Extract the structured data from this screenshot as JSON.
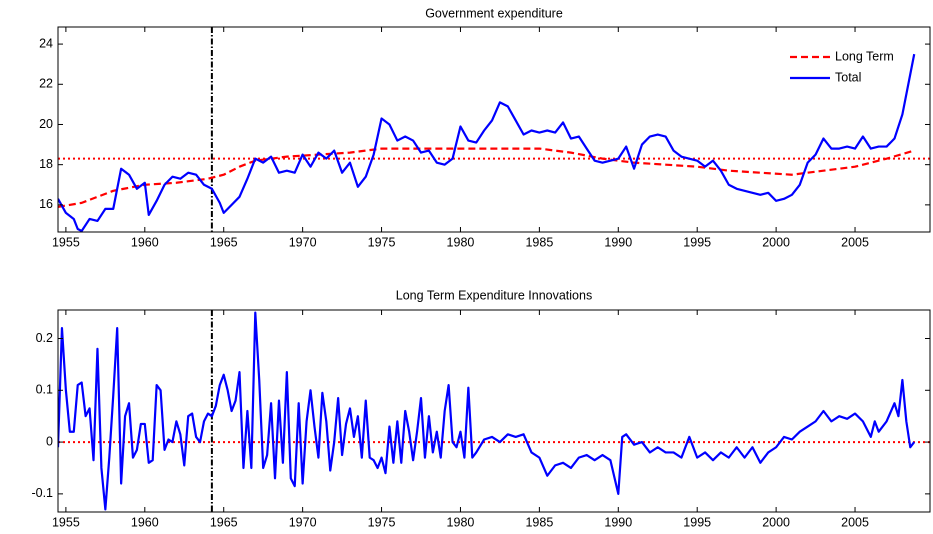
{
  "chart_data": [
    {
      "type": "line",
      "title": "Government expenditure",
      "xlim": [
        1954.5,
        2009.75
      ],
      "xticks": [
        1955,
        1960,
        1965,
        1970,
        1975,
        1980,
        1985,
        1990,
        1995,
        2000,
        2005
      ],
      "ylim": [
        14.65,
        24.85
      ],
      "yticks": [
        16,
        18,
        20,
        22,
        24
      ],
      "hline": 18.3,
      "hline_color": "#ff0000",
      "vline": 1964.25,
      "vline_color": "#000000",
      "legend": "upper right",
      "series": [
        {
          "name": "Long Term",
          "color": "#ff0000",
          "dash": true,
          "x": [
            1954.5,
            1956,
            1958,
            1960,
            1962,
            1964,
            1965,
            1966,
            1967,
            1969,
            1971,
            1973,
            1975,
            1977,
            1979,
            1981,
            1983,
            1985,
            1987,
            1989,
            1991,
            1993,
            1995,
            1997,
            1999,
            2001,
            2003,
            2005,
            2007,
            2008.75
          ],
          "values": [
            15.9,
            16.1,
            16.7,
            17.0,
            17.1,
            17.3,
            17.5,
            17.9,
            18.2,
            18.4,
            18.5,
            18.6,
            18.8,
            18.8,
            18.8,
            18.8,
            18.8,
            18.8,
            18.6,
            18.3,
            18.1,
            18.0,
            17.9,
            17.7,
            17.6,
            17.5,
            17.7,
            17.9,
            18.3,
            18.7
          ]
        },
        {
          "name": "Total",
          "color": "#0000ff",
          "dash": false,
          "x": [
            1954.5,
            1955,
            1955.5,
            1955.75,
            1956,
            1956.5,
            1957,
            1957.5,
            1958,
            1958.5,
            1959,
            1959.5,
            1960,
            1960.25,
            1960.75,
            1961.25,
            1961.75,
            1962.25,
            1962.75,
            1963.25,
            1963.75,
            1964.25,
            1964.75,
            1965,
            1965.5,
            1966,
            1966.5,
            1967,
            1967.5,
            1968,
            1968.5,
            1969,
            1969.5,
            1970,
            1970.5,
            1971,
            1971.5,
            1972,
            1972.5,
            1973,
            1973.5,
            1974,
            1974.5,
            1975,
            1975.5,
            1976,
            1976.5,
            1977,
            1977.5,
            1978,
            1978.5,
            1979,
            1979.5,
            1980,
            1980.5,
            1981,
            1981.5,
            1982,
            1982.5,
            1983,
            1983.5,
            1984,
            1984.5,
            1985,
            1985.5,
            1986,
            1986.5,
            1987,
            1987.5,
            1988,
            1988.5,
            1989,
            1989.5,
            1990,
            1990.5,
            1991,
            1991.5,
            1992,
            1992.5,
            1993,
            1993.5,
            1994,
            1994.5,
            1995,
            1995.5,
            1996,
            1996.5,
            1997,
            1997.5,
            1998,
            1998.5,
            1999,
            1999.5,
            2000,
            2000.5,
            2001,
            2001.5,
            2002,
            2002.5,
            2003,
            2003.5,
            2004,
            2004.5,
            2005,
            2005.5,
            2006,
            2006.5,
            2007,
            2007.5,
            2008,
            2008.5,
            2008.75
          ],
          "values": [
            16.3,
            15.6,
            15.3,
            14.8,
            14.7,
            15.3,
            15.2,
            15.8,
            15.8,
            17.8,
            17.5,
            16.8,
            17.1,
            15.5,
            16.2,
            17.0,
            17.4,
            17.3,
            17.6,
            17.5,
            17.0,
            16.8,
            16.1,
            15.6,
            16.0,
            16.4,
            17.3,
            18.3,
            18.1,
            18.4,
            17.6,
            17.7,
            17.6,
            18.5,
            17.9,
            18.6,
            18.3,
            18.7,
            17.6,
            18.1,
            16.9,
            17.4,
            18.5,
            20.3,
            20.0,
            19.2,
            19.4,
            19.2,
            18.6,
            18.7,
            18.1,
            18.0,
            18.3,
            19.9,
            19.2,
            19.1,
            19.7,
            20.2,
            21.1,
            20.9,
            20.2,
            19.5,
            19.7,
            19.6,
            19.7,
            19.6,
            20.1,
            19.3,
            19.4,
            18.8,
            18.2,
            18.1,
            18.2,
            18.3,
            18.9,
            17.8,
            19.0,
            19.4,
            19.5,
            19.4,
            18.7,
            18.4,
            18.3,
            18.2,
            17.9,
            18.2,
            17.7,
            17.0,
            16.8,
            16.7,
            16.6,
            16.5,
            16.6,
            16.2,
            16.3,
            16.5,
            17.0,
            18.1,
            18.5,
            19.3,
            18.8,
            18.8,
            18.9,
            18.8,
            19.4,
            18.8,
            18.9,
            18.9,
            19.3,
            20.5,
            22.5,
            23.5
          ]
        }
      ]
    },
    {
      "type": "line",
      "title": "Long Term Expenditure Innovations",
      "xlim": [
        1954.5,
        2009.75
      ],
      "xticks": [
        1955,
        1960,
        1965,
        1970,
        1975,
        1980,
        1985,
        1990,
        1995,
        2000,
        2005
      ],
      "ylim": [
        -0.135,
        0.255
      ],
      "yticks": [
        -0.1,
        0,
        0.1,
        0.2
      ],
      "hline": 0,
      "hline_color": "#ff0000",
      "vline": 1964.25,
      "vline_color": "#000000",
      "color": "#0000ff",
      "x": [
        1954.5,
        1954.75,
        1955,
        1955.25,
        1955.5,
        1955.75,
        1956,
        1956.25,
        1956.5,
        1956.75,
        1957,
        1957.25,
        1957.5,
        1957.75,
        1958,
        1958.25,
        1958.5,
        1958.75,
        1959,
        1959.25,
        1959.5,
        1959.75,
        1960,
        1960.25,
        1960.5,
        1960.75,
        1961,
        1961.25,
        1961.5,
        1961.75,
        1962,
        1962.25,
        1962.5,
        1962.75,
        1963,
        1963.25,
        1963.5,
        1963.75,
        1964,
        1964.25,
        1964.5,
        1964.75,
        1965,
        1965.25,
        1965.5,
        1965.75,
        1966,
        1966.25,
        1966.5,
        1966.75,
        1967,
        1967.25,
        1967.5,
        1967.75,
        1968,
        1968.25,
        1968.5,
        1968.75,
        1969,
        1969.25,
        1969.5,
        1969.75,
        1970,
        1970.25,
        1970.5,
        1970.75,
        1971,
        1971.25,
        1971.5,
        1971.75,
        1972,
        1972.25,
        1972.5,
        1972.75,
        1973,
        1973.25,
        1973.5,
        1973.75,
        1974,
        1974.25,
        1974.5,
        1974.75,
        1975,
        1975.25,
        1975.5,
        1975.75,
        1976,
        1976.25,
        1976.5,
        1976.75,
        1977,
        1977.25,
        1977.5,
        1977.75,
        1978,
        1978.25,
        1978.5,
        1978.75,
        1979,
        1979.25,
        1979.5,
        1979.75,
        1980,
        1980.25,
        1980.5,
        1980.75,
        1981,
        1981.5,
        1982,
        1982.5,
        1983,
        1983.5,
        1984,
        1984.5,
        1985,
        1985.5,
        1986,
        1986.5,
        1987,
        1987.5,
        1988,
        1988.5,
        1989,
        1989.5,
        1990,
        1990.25,
        1990.5,
        1991,
        1991.5,
        1992,
        1992.5,
        1993,
        1993.5,
        1994,
        1994.5,
        1995,
        1995.5,
        1996,
        1996.5,
        1997,
        1997.5,
        1998,
        1998.5,
        1999,
        1999.5,
        2000,
        2000.5,
        2001,
        2001.5,
        2002,
        2002.5,
        2003,
        2003.5,
        2004,
        2004.5,
        2005,
        2005.5,
        2006,
        2006.25,
        2006.5,
        2007,
        2007.5,
        2007.75,
        2008,
        2008.25,
        2008.5,
        2008.75
      ],
      "values": [
        -0.01,
        0.22,
        0.1,
        0.02,
        0.02,
        0.11,
        0.115,
        0.05,
        0.065,
        -0.035,
        0.18,
        -0.05,
        -0.13,
        -0.03,
        0.09,
        0.22,
        -0.08,
        0.05,
        0.075,
        -0.03,
        -0.015,
        0.035,
        0.035,
        -0.04,
        -0.035,
        0.11,
        0.1,
        -0.015,
        0.005,
        0.0,
        0.04,
        0.015,
        -0.045,
        0.05,
        0.055,
        0.01,
        0.0,
        0.04,
        0.055,
        0.05,
        0.07,
        0.11,
        0.13,
        0.1,
        0.06,
        0.08,
        0.135,
        -0.05,
        0.06,
        -0.05,
        0.25,
        0.12,
        -0.05,
        -0.025,
        0.075,
        -0.07,
        0.08,
        -0.04,
        0.135,
        -0.07,
        -0.085,
        0.075,
        -0.08,
        0.04,
        0.1,
        0.03,
        -0.03,
        0.095,
        0.04,
        -0.055,
        0.0,
        0.085,
        -0.025,
        0.035,
        0.065,
        0.01,
        0.05,
        -0.03,
        0.08,
        -0.03,
        -0.035,
        -0.05,
        -0.03,
        -0.06,
        0.03,
        -0.04,
        0.04,
        -0.04,
        0.06,
        0.02,
        -0.035,
        0.02,
        0.085,
        -0.03,
        0.05,
        -0.02,
        0.02,
        -0.03,
        0.06,
        0.11,
        0.0,
        -0.01,
        0.02,
        -0.03,
        0.105,
        -0.03,
        -0.02,
        0.005,
        0.01,
        0.0,
        0.015,
        0.01,
        0.015,
        -0.02,
        -0.03,
        -0.065,
        -0.045,
        -0.04,
        -0.05,
        -0.03,
        -0.025,
        -0.035,
        -0.025,
        -0.035,
        -0.1,
        0.01,
        0.015,
        -0.005,
        0.0,
        -0.02,
        -0.01,
        -0.02,
        -0.02,
        -0.03,
        0.01,
        -0.03,
        -0.02,
        -0.035,
        -0.02,
        -0.03,
        -0.01,
        -0.03,
        -0.01,
        -0.04,
        -0.02,
        -0.01,
        0.01,
        0.005,
        0.02,
        0.03,
        0.04,
        0.06,
        0.04,
        0.05,
        0.045,
        0.055,
        0.04,
        0.01,
        0.04,
        0.02,
        0.04,
        0.075,
        0.05,
        0.12,
        0.04,
        -0.01,
        0.0
      ]
    }
  ]
}
